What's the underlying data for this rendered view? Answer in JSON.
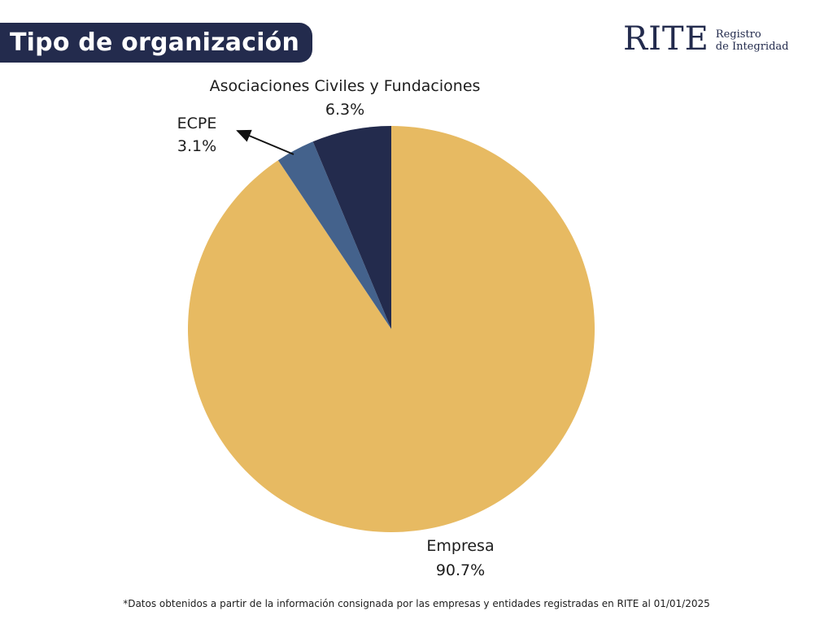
{
  "header": {
    "title": "Tipo de organización",
    "logo_main": "RITE",
    "logo_sub_line1": "Registro",
    "logo_sub_line2": "de Integridad"
  },
  "colors": {
    "navy": "#232b4d",
    "gold": "#e7ba62",
    "steel_blue": "#44628c"
  },
  "chart_data": {
    "type": "pie",
    "slices": [
      {
        "label": "Empresa",
        "value": 90.7,
        "display": "90.7%",
        "color": "#e7ba62"
      },
      {
        "label": "ECPE",
        "value": 3.1,
        "display": "3.1%",
        "color": "#44628c"
      },
      {
        "label": "Asociaciones Civiles y Fundaciones",
        "value": 6.3,
        "display": "6.3%",
        "color": "#232b4d"
      }
    ],
    "start": "12 o'clock",
    "direction": "clockwise"
  },
  "footnote": "*Datos obtenidos a partir de la información consignada por las empresas y entidades registradas en RITE al 01/01/2025"
}
